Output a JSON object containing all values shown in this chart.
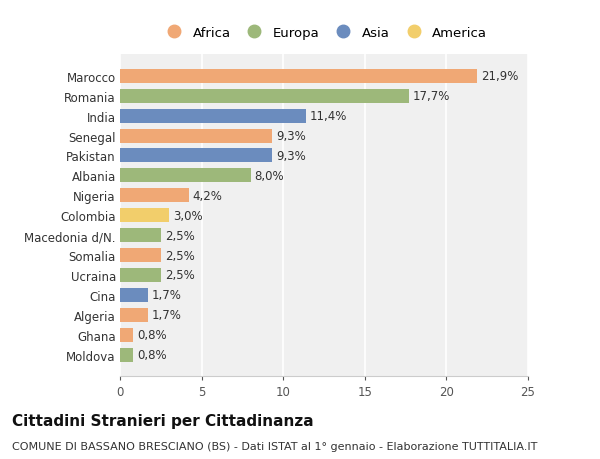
{
  "categories": [
    "Marocco",
    "Romania",
    "India",
    "Senegal",
    "Pakistan",
    "Albania",
    "Nigeria",
    "Colombia",
    "Macedonia d/N.",
    "Somalia",
    "Ucraina",
    "Cina",
    "Algeria",
    "Ghana",
    "Moldova"
  ],
  "values": [
    21.9,
    17.7,
    11.4,
    9.3,
    9.3,
    8.0,
    4.2,
    3.0,
    2.5,
    2.5,
    2.5,
    1.7,
    1.7,
    0.8,
    0.8
  ],
  "labels": [
    "21,9%",
    "17,7%",
    "11,4%",
    "9,3%",
    "9,3%",
    "8,0%",
    "4,2%",
    "3,0%",
    "2,5%",
    "2,5%",
    "2,5%",
    "1,7%",
    "1,7%",
    "0,8%",
    "0,8%"
  ],
  "colors": [
    "#F0A875",
    "#9DB87A",
    "#6B8CBE",
    "#F0A875",
    "#6B8CBE",
    "#9DB87A",
    "#F0A875",
    "#F2CE6B",
    "#9DB87A",
    "#F0A875",
    "#9DB87A",
    "#6B8CBE",
    "#F0A875",
    "#F0A875",
    "#9DB87A"
  ],
  "legend_labels": [
    "Africa",
    "Europa",
    "Asia",
    "America"
  ],
  "legend_colors": [
    "#F0A875",
    "#9DB87A",
    "#6B8CBE",
    "#F2CE6B"
  ],
  "title": "Cittadini Stranieri per Cittadinanza",
  "subtitle": "COMUNE DI BASSANO BRESCIANO (BS) - Dati ISTAT al 1° gennaio - Elaborazione TUTTITALIA.IT",
  "xlim": [
    0,
    25
  ],
  "xticks": [
    0,
    5,
    10,
    15,
    20,
    25
  ],
  "background_color": "#ffffff",
  "plot_bg_color": "#f0f0f0",
  "bar_height": 0.7,
  "title_fontsize": 11,
  "subtitle_fontsize": 8,
  "label_fontsize": 8.5,
  "tick_fontsize": 8.5,
  "legend_fontsize": 9.5
}
